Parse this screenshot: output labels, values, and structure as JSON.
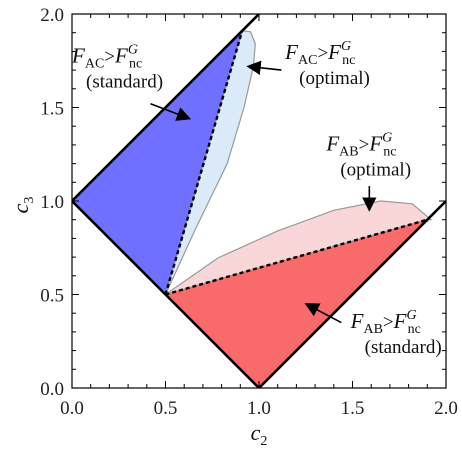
{
  "chart_data": {
    "type": "area",
    "title": "",
    "xlabel": "c",
    "xlabel_sub": "2",
    "ylabel": "c",
    "ylabel_sub": "3",
    "xlim": [
      0,
      2
    ],
    "ylim": [
      0,
      2
    ],
    "xticks": [
      "0.0",
      "0.5",
      "1.0",
      "1.5",
      "2.0"
    ],
    "yticks": [
      "0.0",
      "0.5",
      "1.0",
      "1.5",
      "2.0"
    ],
    "grid": false,
    "colors": {
      "ac_standard": "#7070ff",
      "ac_optimal": "#dbeaf9",
      "ab_standard": "#f96a6a",
      "ab_optimal": "#f9d7d8",
      "boundary": "#000000",
      "dashed": "#000000",
      "optimal_edge": "#999999"
    },
    "regions": {
      "ac_standard": [
        [
          0.0,
          1.0
        ],
        [
          0.5,
          0.5
        ],
        [
          0.91,
          1.91
        ]
      ],
      "ab_standard": [
        [
          0.5,
          0.5
        ],
        [
          1.0,
          0.0
        ],
        [
          1.9,
          0.9
        ]
      ],
      "ac_optimal_boundary": [
        [
          0.5,
          0.5
        ],
        [
          0.66,
          0.85
        ],
        [
          0.83,
          1.2
        ],
        [
          0.92,
          1.5
        ],
        [
          0.97,
          1.72
        ],
        [
          0.98,
          1.84
        ],
        [
          0.955,
          1.905
        ],
        [
          0.91,
          1.91
        ]
      ],
      "ab_optimal_boundary": [
        [
          0.5,
          0.5
        ],
        [
          0.78,
          0.695
        ],
        [
          1.1,
          0.84
        ],
        [
          1.4,
          0.95
        ],
        [
          1.65,
          1.0
        ],
        [
          1.82,
          0.985
        ],
        [
          1.92,
          0.9
        ],
        [
          1.9,
          0.9
        ]
      ]
    },
    "boundary_lines": [
      [
        [
          0.0,
          1.0
        ],
        [
          0.5,
          0.5
        ],
        [
          1.0,
          0.0
        ]
      ],
      [
        [
          0.0,
          1.0
        ],
        [
          1.0,
          2.0
        ]
      ],
      [
        [
          1.0,
          0.0
        ],
        [
          2.0,
          1.0
        ]
      ]
    ],
    "dashed_lines": [
      [
        [
          0.5,
          0.5
        ],
        [
          0.91,
          1.91
        ]
      ],
      [
        [
          0.5,
          0.5
        ],
        [
          1.9,
          0.9
        ]
      ]
    ],
    "annotations": [
      {
        "id": "ac-standard",
        "F": "F",
        "sub": "AC",
        "rel": ">",
        "F2": "F",
        "sup2": "G",
        "sub2": "nc",
        "line2": "(standard)",
        "text_x": 0.0,
        "text_y": 1.74,
        "arrow_from": [
          0.42,
          1.52
        ],
        "arrow_to": [
          0.63,
          1.44
        ]
      },
      {
        "id": "ac-optimal",
        "F": "F",
        "sub": "AC",
        "rel": ">",
        "F2": "F",
        "sup2": "G",
        "sub2": "nc",
        "line2": "(optimal)",
        "text_x": 1.14,
        "text_y": 1.76,
        "arrow_from": [
          1.12,
          1.7
        ],
        "arrow_to": [
          0.94,
          1.72
        ]
      },
      {
        "id": "ab-optimal",
        "F": "F",
        "sub": "AB",
        "rel": ">",
        "F2": "F",
        "sup2": "G",
        "sub2": "nc",
        "line2": "(optimal)",
        "text_x": 1.36,
        "text_y": 1.27,
        "arrow_from": [
          1.59,
          1.08
        ],
        "arrow_to": [
          1.59,
          0.95
        ]
      },
      {
        "id": "ab-standard",
        "F": "F",
        "sub": "AB",
        "rel": ">",
        "F2": "F",
        "sup2": "G",
        "sub2": "nc",
        "line2": "(standard)",
        "text_x": 1.49,
        "text_y": 0.32,
        "arrow_from": [
          1.44,
          0.35
        ],
        "arrow_to": [
          1.25,
          0.45
        ]
      }
    ]
  }
}
